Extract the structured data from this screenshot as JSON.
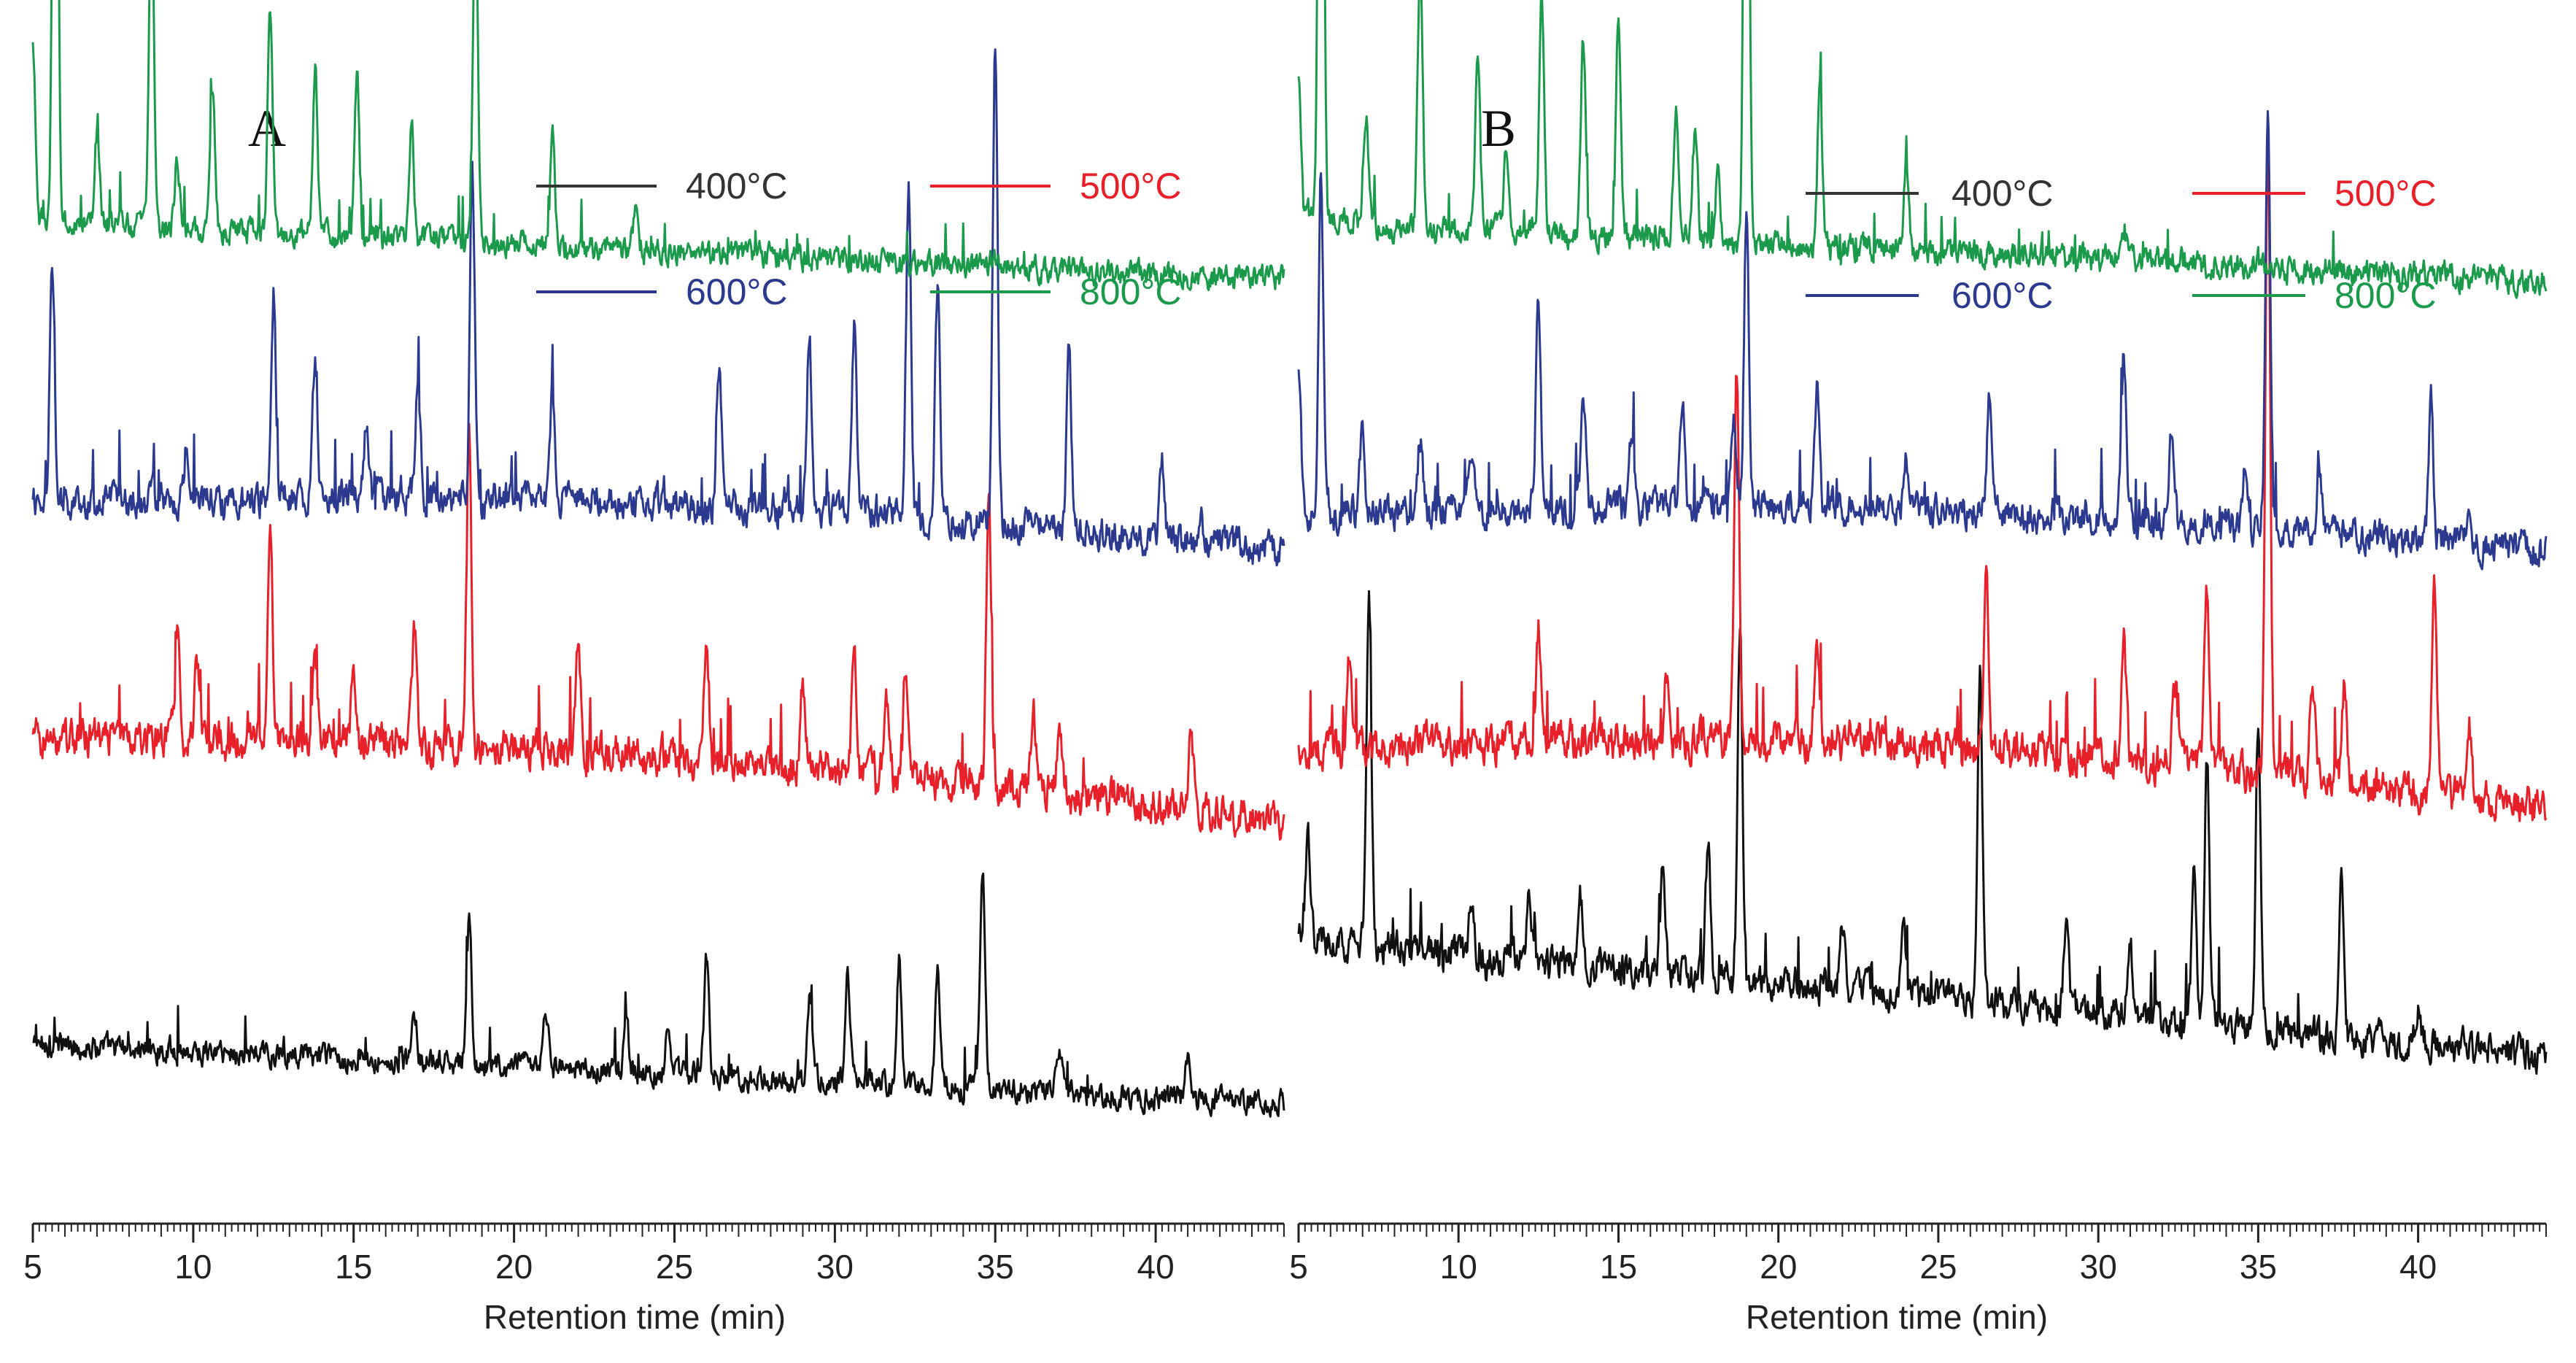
{
  "chart_data": [
    {
      "panel": "A",
      "type": "line",
      "title": "A",
      "xlabel": "Retention time  (min)",
      "ylabel": "",
      "xlim": [
        5,
        44
      ],
      "x_ticks": [
        5,
        10,
        15,
        20,
        25,
        30,
        35,
        40
      ],
      "legend_position": "top-right",
      "series": [
        {
          "name": "400°C",
          "color": "#111111",
          "offset": 0.08,
          "noise": 0.012,
          "drift": [
            0.05,
            0.0
          ],
          "peaks": [
            [
              18.6,
              0.13
            ],
            [
              26.0,
              0.1
            ],
            [
              29.2,
              0.07
            ],
            [
              30.4,
              0.1
            ],
            [
              32.0,
              0.11
            ],
            [
              33.2,
              0.1
            ],
            [
              34.6,
              0.19
            ],
            [
              21.0,
              0.05
            ],
            [
              23.5,
              0.04
            ],
            [
              37.0,
              0.04
            ],
            [
              41.0,
              0.03
            ],
            [
              16.9,
              0.04
            ],
            [
              24.8,
              0.05
            ]
          ]
        },
        {
          "name": "500°C",
          "color": "#e8202a",
          "offset": 0.32,
          "noise": 0.018,
          "drift": [
            0.07,
            0.02
          ],
          "peaks": [
            [
              12.4,
              0.18
            ],
            [
              9.5,
              0.08
            ],
            [
              10.1,
              0.07
            ],
            [
              13.8,
              0.08
            ],
            [
              15.0,
              0.06
            ],
            [
              16.9,
              0.1
            ],
            [
              18.6,
              0.27
            ],
            [
              22.0,
              0.1
            ],
            [
              26.0,
              0.1
            ],
            [
              29.0,
              0.07
            ],
            [
              30.6,
              0.1
            ],
            [
              31.6,
              0.07
            ],
            [
              32.2,
              0.09
            ],
            [
              34.8,
              0.25
            ],
            [
              36.2,
              0.06
            ],
            [
              37.0,
              0.06
            ],
            [
              41.1,
              0.06
            ]
          ]
        },
        {
          "name": "600°C",
          "color": "#2b3a8f",
          "offset": 0.55,
          "noise": 0.016,
          "drift": [
            0.04,
            0.02
          ],
          "peaks": [
            [
              5.6,
              0.2
            ],
            [
              9.8,
              0.05
            ],
            [
              12.5,
              0.18
            ],
            [
              13.8,
              0.12
            ],
            [
              15.4,
              0.06
            ],
            [
              17.0,
              0.1
            ],
            [
              18.7,
              0.28
            ],
            [
              21.2,
              0.09
            ],
            [
              26.4,
              0.12
            ],
            [
              29.2,
              0.15
            ],
            [
              30.6,
              0.16
            ],
            [
              32.3,
              0.28
            ],
            [
              33.2,
              0.2
            ],
            [
              35.0,
              0.41
            ],
            [
              37.3,
              0.15
            ],
            [
              40.2,
              0.06
            ],
            [
              41.4,
              0.03
            ]
          ]
        },
        {
          "name": "800°C",
          "color": "#1a9a4a",
          "offset": 0.78,
          "noise": 0.012,
          "drift": [
            0.05,
            0.0
          ],
          "peaks": [
            [
              5.0,
              0.15
            ],
            [
              5.7,
              0.68
            ],
            [
              7.0,
              0.08
            ],
            [
              8.7,
              0.29
            ],
            [
              9.5,
              0.06
            ],
            [
              10.6,
              0.12
            ],
            [
              12.4,
              0.19
            ],
            [
              13.8,
              0.14
            ],
            [
              15.1,
              0.14
            ],
            [
              16.8,
              0.1
            ],
            [
              18.8,
              0.3
            ],
            [
              21.2,
              0.09
            ],
            [
              23.8,
              0.04
            ],
            [
              35.0,
              0.01
            ]
          ]
        }
      ],
      "legend": [
        {
          "name": "400°C",
          "color": "#333333"
        },
        {
          "name": "500°C",
          "color": "#e8202a"
        },
        {
          "name": "600°C",
          "color": "#2b3a8f"
        },
        {
          "name": "800°C",
          "color": "#1a9a4a"
        }
      ]
    },
    {
      "panel": "B",
      "type": "line",
      "title": "B",
      "xlabel": "Retention time  (min)",
      "ylabel": "",
      "xlim": [
        5,
        44
      ],
      "x_ticks": [
        5,
        10,
        15,
        20,
        25,
        30,
        35,
        40
      ],
      "legend_position": "top-right",
      "series": [
        {
          "name": "400°C",
          "color": "#111111",
          "offset": 0.12,
          "noise": 0.016,
          "drift": [
            0.1,
            0.0
          ],
          "peaks": [
            [
              5.3,
              0.08
            ],
            [
              7.2,
              0.3
            ],
            [
              10.4,
              0.05
            ],
            [
              12.2,
              0.05
            ],
            [
              13.8,
              0.06
            ],
            [
              16.4,
              0.09
            ],
            [
              17.8,
              0.11
            ],
            [
              18.8,
              0.3
            ],
            [
              22.0,
              0.05
            ],
            [
              23.9,
              0.06
            ],
            [
              26.3,
              0.28
            ],
            [
              29.0,
              0.08
            ],
            [
              31.0,
              0.06
            ],
            [
              33.0,
              0.13
            ],
            [
              33.4,
              0.22
            ],
            [
              35.0,
              0.26
            ],
            [
              37.6,
              0.14
            ],
            [
              40.0,
              0.03
            ]
          ]
        },
        {
          "name": "500°C",
          "color": "#e8202a",
          "offset": 0.33,
          "noise": 0.018,
          "drift": [
            0.05,
            0.03
          ],
          "peaks": [
            [
              6.6,
              0.06
            ],
            [
              12.5,
              0.1
            ],
            [
              16.5,
              0.05
            ],
            [
              18.7,
              0.31
            ],
            [
              21.2,
              0.08
            ],
            [
              26.5,
              0.15
            ],
            [
              30.8,
              0.1
            ],
            [
              32.4,
              0.07
            ],
            [
              33.4,
              0.15
            ],
            [
              35.3,
              0.55
            ],
            [
              36.7,
              0.09
            ],
            [
              37.7,
              0.08
            ],
            [
              40.5,
              0.18
            ],
            [
              41.6,
              0.06
            ]
          ]
        },
        {
          "name": "600°C",
          "color": "#2b3a8f",
          "offset": 0.55,
          "noise": 0.016,
          "drift": [
            0.03,
            0.02
          ],
          "peaks": [
            [
              5.0,
              0.12
            ],
            [
              5.7,
              0.3
            ],
            [
              7.0,
              0.07
            ],
            [
              8.8,
              0.06
            ],
            [
              10.4,
              0.05
            ],
            [
              12.5,
              0.18
            ],
            [
              13.9,
              0.1
            ],
            [
              15.4,
              0.06
            ],
            [
              17.0,
              0.08
            ],
            [
              18.6,
              0.08
            ],
            [
              19.0,
              0.25
            ],
            [
              21.2,
              0.1
            ],
            [
              24.0,
              0.04
            ],
            [
              26.6,
              0.1
            ],
            [
              30.8,
              0.14
            ],
            [
              32.3,
              0.08
            ],
            [
              34.6,
              0.06
            ],
            [
              35.3,
              0.36
            ],
            [
              36.9,
              0.05
            ],
            [
              40.4,
              0.12
            ],
            [
              41.6,
              0.03
            ]
          ]
        },
        {
          "name": "800°C",
          "color": "#1a9a4a",
          "offset": 0.78,
          "noise": 0.013,
          "drift": [
            0.05,
            0.0
          ],
          "peaks": [
            [
              5.0,
              0.12
            ],
            [
              5.7,
              0.8
            ],
            [
              7.1,
              0.1
            ],
            [
              8.8,
              0.23
            ],
            [
              10.6,
              0.14
            ],
            [
              11.5,
              0.07
            ],
            [
              12.6,
              0.2
            ],
            [
              13.9,
              0.17
            ],
            [
              15.0,
              0.19
            ],
            [
              16.8,
              0.11
            ],
            [
              17.4,
              0.09
            ],
            [
              18.1,
              0.06
            ],
            [
              19.0,
              0.71
            ],
            [
              21.3,
              0.14
            ],
            [
              24.0,
              0.07
            ],
            [
              30.8,
              0.03
            ]
          ]
        }
      ],
      "legend": [
        {
          "name": "400°C",
          "color": "#333333"
        },
        {
          "name": "500°C",
          "color": "#e8202a"
        },
        {
          "name": "600°C",
          "color": "#2b3a8f"
        },
        {
          "name": "800°C",
          "color": "#1a9a4a"
        }
      ]
    }
  ]
}
